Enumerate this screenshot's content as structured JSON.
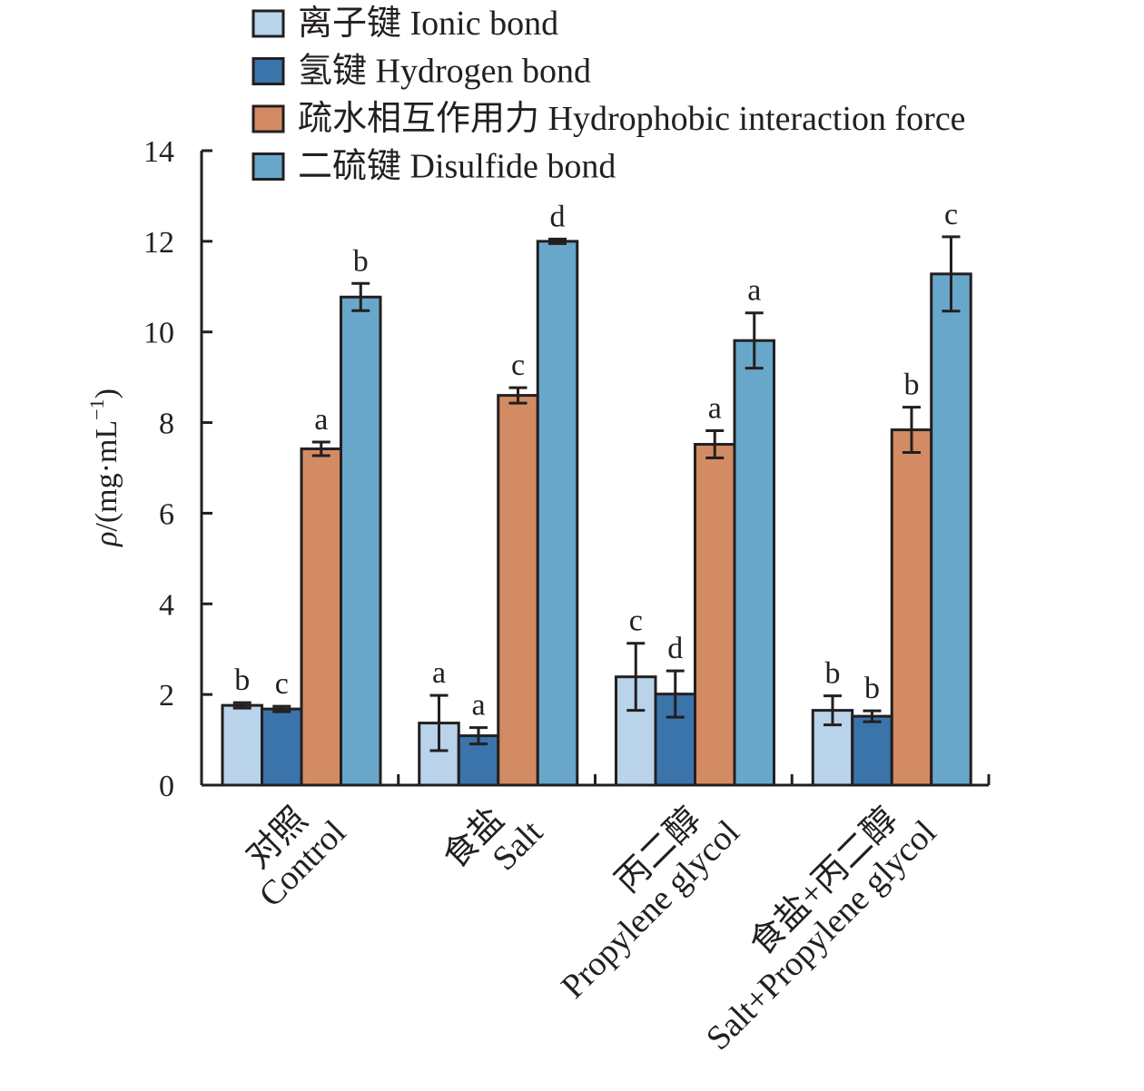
{
  "chart_data": {
    "type": "bar",
    "title": "",
    "xlabel": "",
    "ylabel": "ρ/(mg·mL⁻¹)",
    "ylabel_parts": {
      "symbol": "ρ",
      "text": "/(mg·mL",
      "sup": "−1",
      "close": ")"
    },
    "ylim": [
      0,
      14
    ],
    "yticks": [
      0,
      2,
      4,
      6,
      8,
      10,
      12,
      14
    ],
    "grid": false,
    "legend_position": "top",
    "categories": [
      {
        "zh": "对照",
        "en": "Control"
      },
      {
        "zh": "食盐",
        "en": "Salt"
      },
      {
        "zh": "丙二醇",
        "en": "Propylene glycol"
      },
      {
        "zh": "食盐+丙二醇",
        "en": "Salt+Propylene glycol"
      }
    ],
    "series": [
      {
        "name": "离子键 Ionic bond",
        "color": "#b9d3eb",
        "values": [
          1.76,
          1.37,
          2.39,
          1.65
        ],
        "errors": [
          0.06,
          0.61,
          0.74,
          0.32
        ],
        "significance": [
          "b",
          "a",
          "c",
          "b"
        ]
      },
      {
        "name": "氢键 Hydrogen bond",
        "color": "#3a74ab",
        "values": [
          1.68,
          1.09,
          2.01,
          1.52
        ],
        "errors": [
          0.06,
          0.18,
          0.51,
          0.12
        ],
        "significance": [
          "c",
          "a",
          "d",
          "b"
        ]
      },
      {
        "name": "疏水相互作用力 Hydrophobic interaction force",
        "color": "#d38b63",
        "values": [
          7.42,
          8.6,
          7.52,
          7.84
        ],
        "errors": [
          0.15,
          0.17,
          0.3,
          0.5
        ],
        "significance": [
          "a",
          "c",
          "a",
          "b"
        ]
      },
      {
        "name": "二硫键 Disulfide bond",
        "color": "#68a7ca",
        "values": [
          10.77,
          12.0,
          9.81,
          11.28
        ],
        "errors": [
          0.3,
          0.05,
          0.61,
          0.82
        ],
        "significance": [
          "b",
          "d",
          "a",
          "c"
        ]
      }
    ]
  }
}
